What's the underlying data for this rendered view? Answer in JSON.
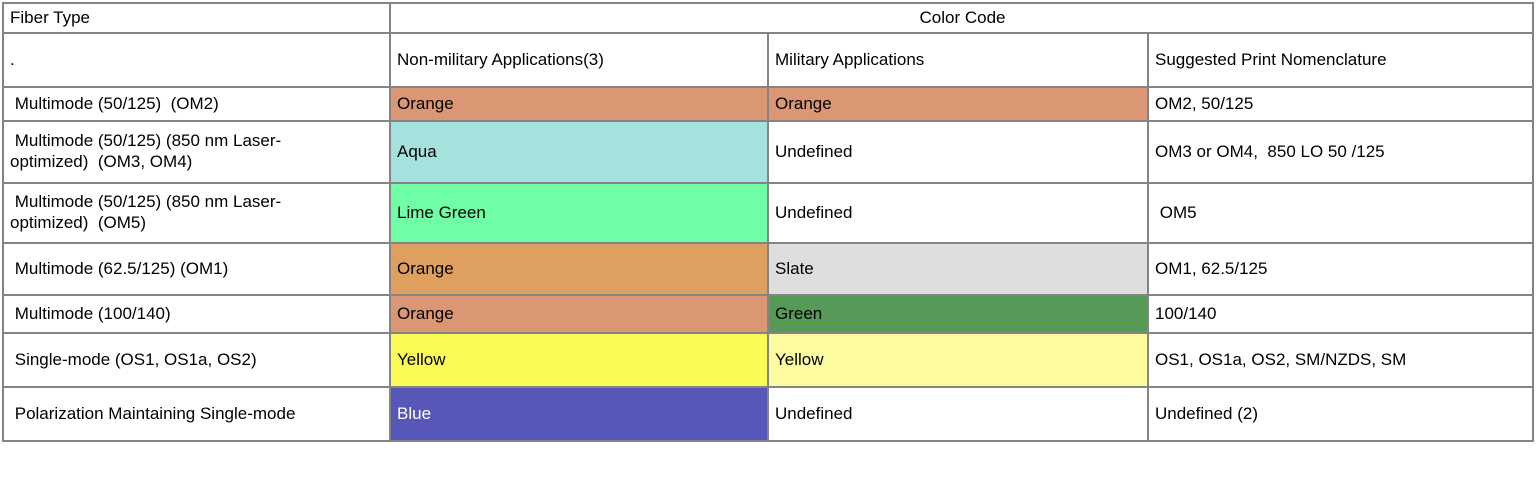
{
  "page": {
    "background": "#ffffff",
    "border_color": "#848484"
  },
  "table": {
    "header_row1": {
      "fiber_type": "Fiber Type",
      "color_code": "Color Code"
    },
    "header_row2": {
      "fiber_placeholder": ".",
      "non_military": "Non-military Applications(3)",
      "military": "Military Applications",
      "nomenclature": "Suggested Print Nomenclature"
    },
    "rows": [
      {
        "fiber": " Multimode (50/125)  (OM2)",
        "non_military": {
          "label": "Orange",
          "bg": "#DB9673",
          "fg": "#000000"
        },
        "military": {
          "label": "Orange",
          "bg": "#DB9673",
          "fg": "#000000"
        },
        "nomenclature": "OM2, 50/125"
      },
      {
        "fiber": " Multimode (50/125) (850 nm Laser-\noptimized)  (OM3, OM4)",
        "non_military": {
          "label": "Aqua",
          "bg": "#A5E1DD",
          "fg": "#000000"
        },
        "military": {
          "label": "Undefined",
          "bg": "#FFFFFF",
          "fg": "#000000"
        },
        "nomenclature": "OM3 or OM4,  850 LO 50 /125"
      },
      {
        "fiber": " Multimode (50/125) (850 nm Laser-\noptimized)  (OM5)",
        "non_military": {
          "label": "Lime Green",
          "bg": "#6FFEA5",
          "fg": "#000000"
        },
        "military": {
          "label": "Undefined",
          "bg": "#FFFFFF",
          "fg": "#000000"
        },
        "nomenclature": " OM5"
      },
      {
        "fiber": " Multimode (62.5/125) (OM1)",
        "non_military": {
          "label": "Orange",
          "bg": "#DFA05F",
          "fg": "#000000"
        },
        "military": {
          "label": "Slate",
          "bg": "#DEDEDE",
          "fg": "#000000"
        },
        "nomenclature": "OM1, 62.5/125"
      },
      {
        "fiber": " Multimode (100/140)",
        "non_military": {
          "label": "Orange",
          "bg": "#DB9673",
          "fg": "#000000"
        },
        "military": {
          "label": "Green",
          "bg": "#579957",
          "fg": "#000000"
        },
        "nomenclature": "100/140"
      },
      {
        "fiber": " Single-mode (OS1, OS1a, OS2)",
        "non_military": {
          "label": "Yellow",
          "bg": "#FBFB57",
          "fg": "#000000"
        },
        "military": {
          "label": "Yellow",
          "bg": "#FCFC9E",
          "fg": "#000000"
        },
        "nomenclature": "OS1, OS1a, OS2, SM/NZDS, SM"
      },
      {
        "fiber": " Polarization Maintaining Single-mode",
        "non_military": {
          "label": "Blue",
          "bg": "#5757B9",
          "fg": "#FFFFFF"
        },
        "military": {
          "label": "Undefined",
          "bg": "#FFFFFF",
          "fg": "#000000"
        },
        "nomenclature": "Undefined (2)"
      }
    ]
  }
}
